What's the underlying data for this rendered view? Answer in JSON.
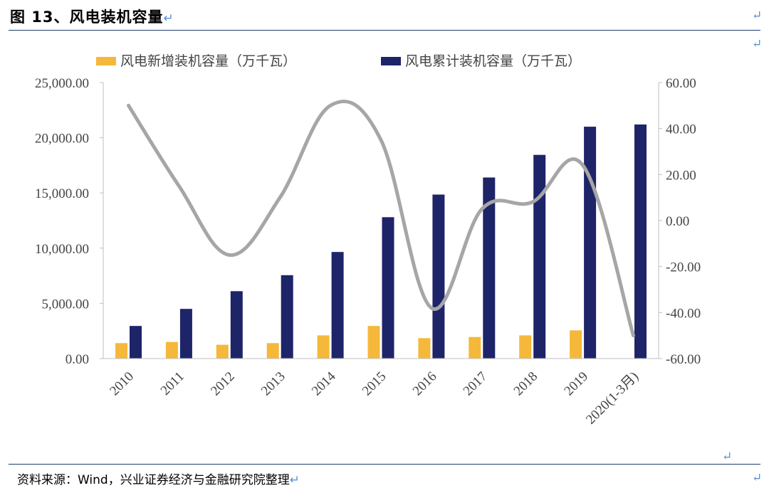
{
  "figure": {
    "title": "图 13、风电装机容量",
    "source": "资料来源：Wind，兴业证券经济与金融研究院整理",
    "return_mark": "↵"
  },
  "chart_data": {
    "type": "bar",
    "title": "",
    "categories": [
      "2010",
      "2011",
      "2012",
      "2013",
      "2014",
      "2015",
      "2016",
      "2017",
      "2018",
      "2019",
      "2020(1-3月)"
    ],
    "series": [
      {
        "name": "风电新增装机容量（万千瓦）",
        "type": "bar",
        "axis": "left",
        "color": "#f5b83a",
        "values": [
          1400,
          1500,
          1250,
          1400,
          2100,
          2950,
          1850,
          1950,
          2100,
          2550,
          null
        ]
      },
      {
        "name": "风电累计装机容量（万千瓦）",
        "type": "bar",
        "axis": "left",
        "color": "#1e2468",
        "values": [
          2950,
          4500,
          6100,
          7550,
          9650,
          12800,
          14850,
          16400,
          18450,
          21000,
          21200
        ]
      },
      {
        "name": "",
        "type": "line",
        "axis": "right",
        "color": "#a6a6a6",
        "values": [
          50,
          15,
          -15,
          10,
          50,
          35,
          -38,
          5,
          8,
          24,
          -50
        ]
      }
    ],
    "left_axis": {
      "min": 0,
      "max": 25000,
      "ticks": [
        "25,000.00",
        "20,000.00",
        "15,000.00",
        "10,000.00",
        "5,000.00",
        "0.00"
      ]
    },
    "right_axis": {
      "min": -60,
      "max": 60,
      "ticks": [
        "60.00",
        "40.00",
        "20.00",
        "0.00",
        "-20.00",
        "-40.00",
        "-60.00"
      ]
    },
    "legend_position": "top",
    "grid": false
  }
}
